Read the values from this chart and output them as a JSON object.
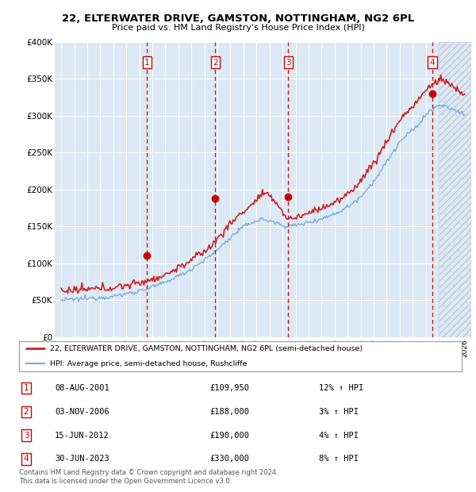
{
  "title": "22, ELTERWATER DRIVE, GAMSTON, NOTTINGHAM, NG2 6PL",
  "subtitle": "Price paid vs. HM Land Registry's House Price Index (HPI)",
  "xlim_min": 1994.5,
  "xlim_max": 2026.5,
  "ylim": [
    0,
    400000
  ],
  "yticks": [
    0,
    50000,
    100000,
    150000,
    200000,
    250000,
    300000,
    350000,
    400000
  ],
  "ytick_labels": [
    "£0",
    "£50K",
    "£100K",
    "£150K",
    "£200K",
    "£250K",
    "£300K",
    "£350K",
    "£400K"
  ],
  "xticks": [
    1995,
    1996,
    1997,
    1998,
    1999,
    2000,
    2001,
    2002,
    2003,
    2004,
    2005,
    2006,
    2007,
    2008,
    2009,
    2010,
    2011,
    2012,
    2013,
    2014,
    2015,
    2016,
    2017,
    2018,
    2019,
    2020,
    2021,
    2022,
    2023,
    2024,
    2025,
    2026
  ],
  "sale_dates": [
    2001.6,
    2006.84,
    2012.45,
    2023.5
  ],
  "sale_prices": [
    109950,
    188000,
    190000,
    330000
  ],
  "sale_labels": [
    "1",
    "2",
    "3",
    "4"
  ],
  "vline_color": "#cc0000",
  "dot_color": "#cc0000",
  "hatch_start": 2024.0,
  "legend_red_label": "22, ELTERWATER DRIVE, GAMSTON, NOTTINGHAM, NG2 6PL (semi-detached house)",
  "legend_blue_label": "HPI: Average price, semi-detached house, Rushcliffe",
  "table_rows": [
    [
      "1",
      "08-AUG-2001",
      "£109,950",
      "12% ↑ HPI"
    ],
    [
      "2",
      "03-NOV-2006",
      "£188,000",
      "3% ↑ HPI"
    ],
    [
      "3",
      "15-JUN-2012",
      "£190,000",
      "4% ↑ HPI"
    ],
    [
      "4",
      "30-JUN-2023",
      "£330,000",
      "8% ↑ HPI"
    ]
  ],
  "footer": "Contains HM Land Registry data © Crown copyright and database right 2024.\nThis data is licensed under the Open Government Licence v3.0.",
  "bg_color": "#dce9f5",
  "red_line_color": "#cc2222",
  "blue_line_color": "#7aaed6",
  "hpi_waypoints_t": [
    0.0,
    0.06,
    0.13,
    0.19,
    0.25,
    0.31,
    0.37,
    0.41,
    0.44,
    0.47,
    0.5,
    0.53,
    0.56,
    0.59,
    0.63,
    0.66,
    0.69,
    0.72,
    0.75,
    0.78,
    0.81,
    0.84,
    0.88,
    0.91,
    0.94,
    0.97,
    1.0
  ],
  "hpi_waypoints_v": [
    50000,
    52000,
    55000,
    62000,
    72000,
    88000,
    110000,
    130000,
    145000,
    155000,
    160000,
    155000,
    150000,
    152000,
    158000,
    163000,
    170000,
    180000,
    195000,
    215000,
    240000,
    265000,
    285000,
    305000,
    315000,
    308000,
    303000
  ],
  "pp_waypoints_t": [
    0.0,
    0.06,
    0.13,
    0.19,
    0.25,
    0.31,
    0.37,
    0.41,
    0.44,
    0.47,
    0.5,
    0.53,
    0.56,
    0.59,
    0.63,
    0.66,
    0.69,
    0.72,
    0.75,
    0.78,
    0.81,
    0.84,
    0.88,
    0.91,
    0.94,
    0.97,
    1.0
  ],
  "pp_waypoints_v": [
    62000,
    64000,
    67000,
    73000,
    82000,
    100000,
    122000,
    148000,
    165000,
    178000,
    195000,
    185000,
    160000,
    163000,
    172000,
    178000,
    185000,
    198000,
    218000,
    240000,
    268000,
    295000,
    318000,
    338000,
    350000,
    340000,
    328000
  ]
}
